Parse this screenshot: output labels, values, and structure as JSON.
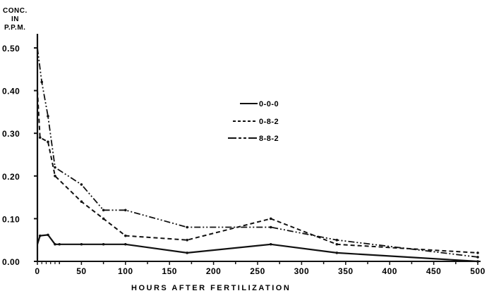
{
  "chart_data": {
    "type": "line",
    "title": "",
    "ylabel": "CONC. IN P.P.M.",
    "ylabel_lines": [
      "CONC.",
      "IN",
      "P.P.M."
    ],
    "xlabel": "HOURS AFTER FERTILIZATION",
    "xlim": [
      0,
      500
    ],
    "ylim": [
      0.0,
      0.5
    ],
    "x_ticks": [
      0,
      50,
      100,
      150,
      200,
      250,
      300,
      350,
      400,
      450,
      500
    ],
    "x_tick_labels": [
      "0",
      "50",
      "100",
      "150",
      "200",
      "250",
      "300",
      "350",
      "400",
      "450",
      "500"
    ],
    "y_ticks": [
      0.0,
      0.1,
      0.2,
      0.3,
      0.4,
      0.5
    ],
    "y_tick_labels": [
      "0.00",
      "0.10",
      "0.20",
      "0.30",
      "0.40",
      "0.50"
    ],
    "grid": false,
    "legend_position": "upper-center",
    "series": [
      {
        "name": "0-0-0",
        "style": "solid",
        "x": [
          0,
          3,
          12,
          20,
          25,
          50,
          75,
          100,
          170,
          265,
          340,
          500
        ],
        "values": [
          0.04,
          0.06,
          0.062,
          0.04,
          0.04,
          0.04,
          0.04,
          0.04,
          0.02,
          0.04,
          0.02,
          0.0
        ]
      },
      {
        "name": "0-8-2",
        "style": "dashed",
        "x": [
          0,
          3,
          12,
          20,
          50,
          75,
          100,
          170,
          265,
          340,
          500
        ],
        "values": [
          0.4,
          0.29,
          0.28,
          0.2,
          0.14,
          0.1,
          0.06,
          0.05,
          0.1,
          0.04,
          0.02
        ]
      },
      {
        "name": "8-8-2",
        "style": "dash-dot",
        "x": [
          0,
          5,
          12,
          20,
          50,
          75,
          100,
          170,
          265,
          340,
          500
        ],
        "values": [
          0.5,
          0.42,
          0.34,
          0.22,
          0.18,
          0.12,
          0.12,
          0.08,
          0.08,
          0.05,
          0.01
        ]
      }
    ]
  }
}
